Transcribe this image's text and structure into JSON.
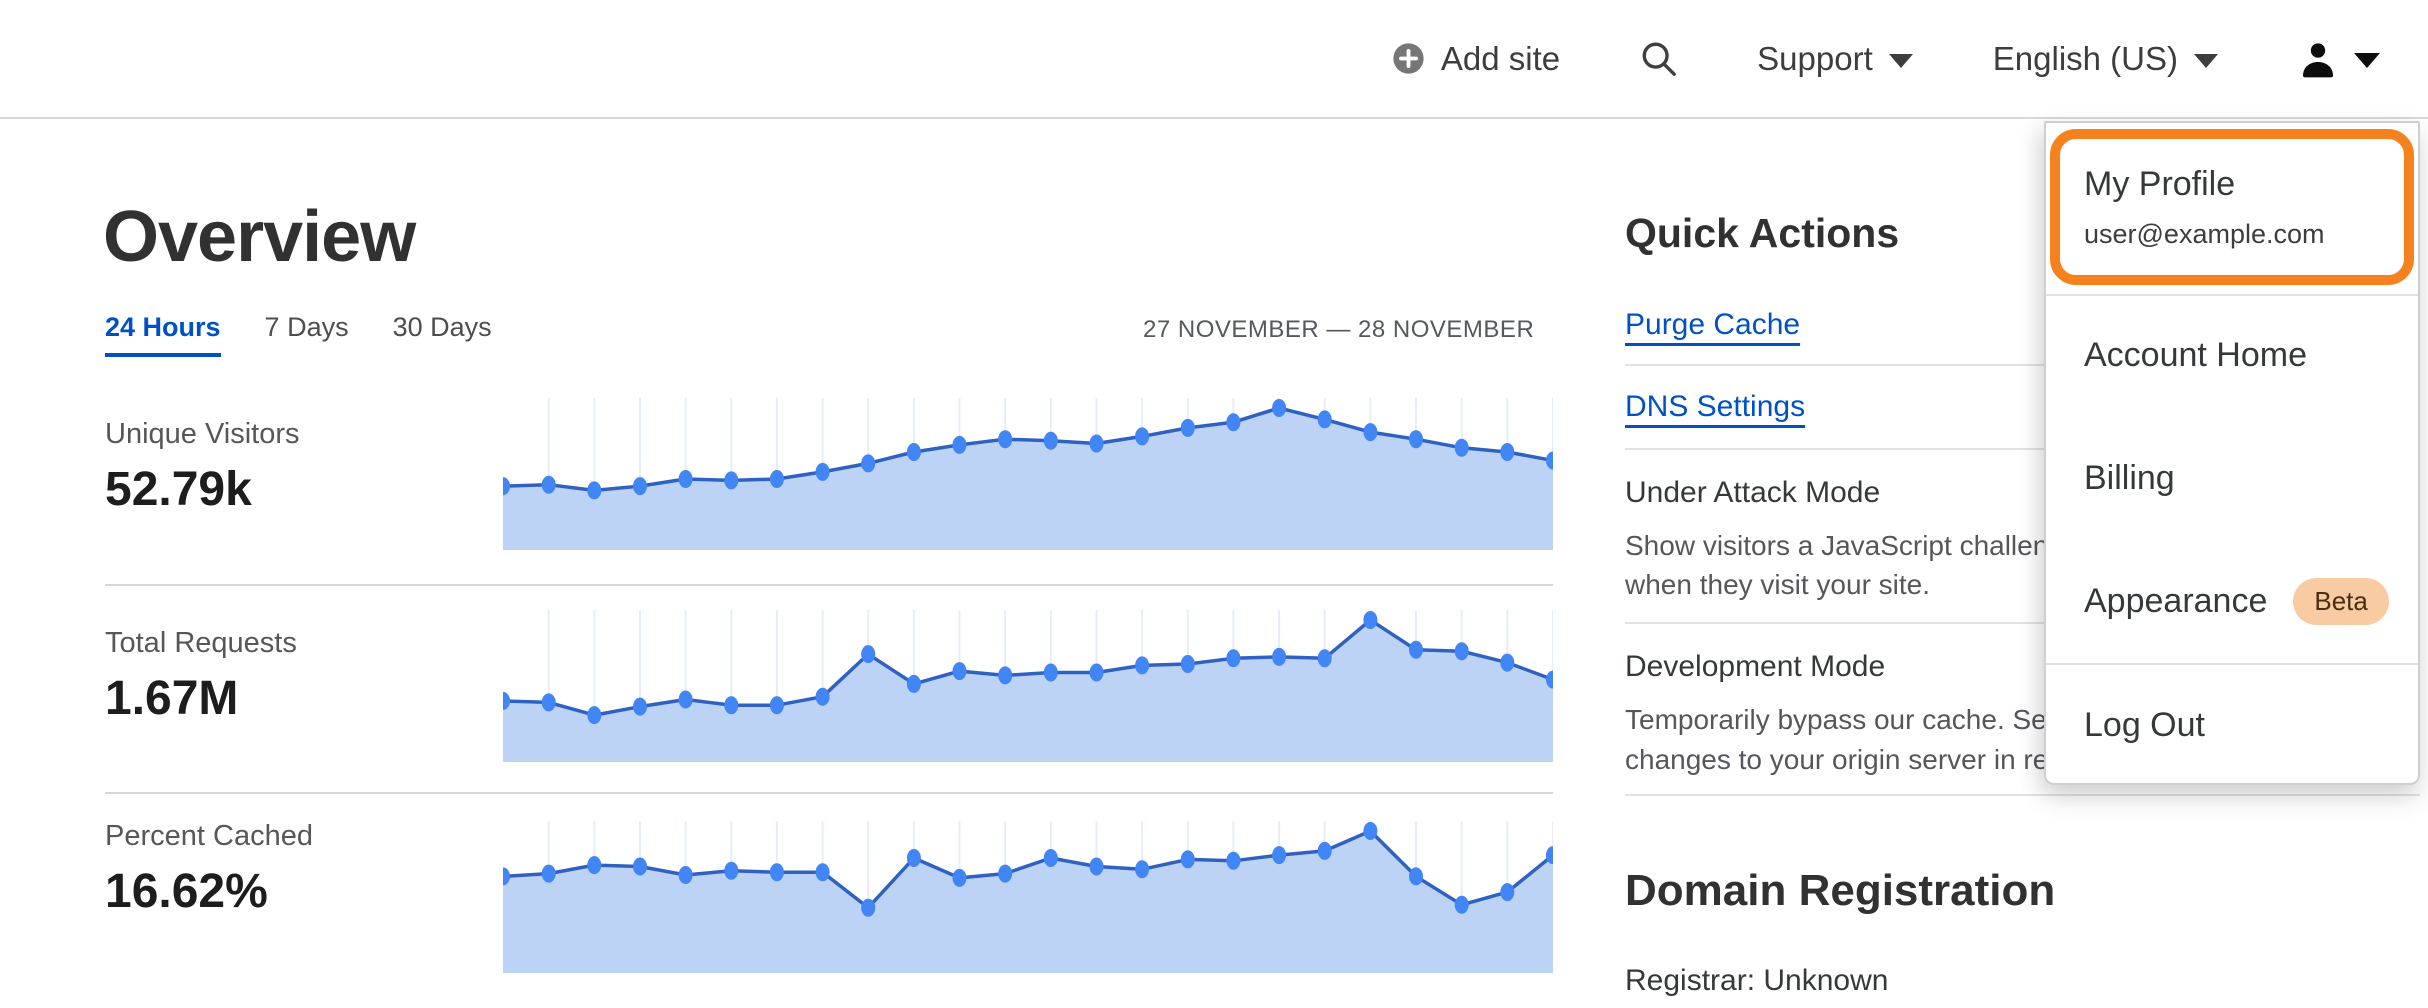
{
  "nav": {
    "add_site_label": "Add site",
    "support_label": "Support",
    "language_label": "English (US)"
  },
  "user_menu": {
    "profile_label": "My Profile",
    "profile_email": "user@example.com",
    "items": [
      {
        "label": "Account Home"
      },
      {
        "label": "Billing"
      },
      {
        "label": "Appearance",
        "badge": "Beta"
      },
      {
        "label": "Log Out"
      }
    ]
  },
  "overview": {
    "title": "Overview",
    "tabs": [
      {
        "label": "24 Hours",
        "active": true
      },
      {
        "label": "7 Days",
        "active": false
      },
      {
        "label": "30 Days",
        "active": false
      }
    ],
    "date_range": "27 NOVEMBER — 28 NOVEMBER",
    "metrics": [
      {
        "label": "Unique Visitors",
        "value": "52.79k"
      },
      {
        "label": "Total Requests",
        "value": "1.67M"
      },
      {
        "label": "Percent Cached",
        "value": "16.62%"
      }
    ]
  },
  "quick_actions": {
    "title": "Quick Actions",
    "links": [
      {
        "label": "Purge Cache"
      },
      {
        "label": "DNS Settings"
      }
    ],
    "sections": [
      {
        "label": "Under Attack Mode",
        "description_lines": [
          "Show visitors a JavaScript challenge",
          "when they visit your site."
        ]
      },
      {
        "label": "Development Mode",
        "description_lines": [
          "Temporarily bypass our cache. See",
          "changes to your origin server in realtime."
        ]
      }
    ]
  },
  "domain_registration": {
    "title": "Domain Registration",
    "registrar_line": "Registrar: Unknown"
  },
  "chart_data": [
    {
      "type": "area",
      "title": "Unique Visitors",
      "value_label": "52.79k",
      "x_description": "24 evenly spaced points over 27 Nov – 28 Nov (no axis tick labels shown)",
      "ylim": [
        0,
        1
      ],
      "grid": "vertical-only",
      "legend": false,
      "values_relative": [
        0.45,
        0.46,
        0.42,
        0.45,
        0.5,
        0.49,
        0.5,
        0.55,
        0.61,
        0.69,
        0.74,
        0.78,
        0.77,
        0.75,
        0.8,
        0.86,
        0.9,
        1.0,
        0.92,
        0.83,
        0.78,
        0.72,
        0.69,
        0.63
      ]
    },
    {
      "type": "area",
      "title": "Total Requests",
      "value_label": "1.67M",
      "x_description": "24 evenly spaced points over 27 Nov – 28 Nov (no axis tick labels shown)",
      "ylim": [
        0,
        1
      ],
      "grid": "vertical-only",
      "legend": false,
      "values_relative": [
        0.43,
        0.42,
        0.33,
        0.39,
        0.44,
        0.4,
        0.4,
        0.46,
        0.76,
        0.55,
        0.64,
        0.61,
        0.63,
        0.63,
        0.68,
        0.69,
        0.73,
        0.74,
        0.73,
        1.0,
        0.79,
        0.78,
        0.7,
        0.58
      ]
    },
    {
      "type": "area",
      "title": "Percent Cached",
      "value_label": "16.62%",
      "x_description": "24 evenly spaced points over 27 Nov – 28 Nov (no axis tick labels shown)",
      "ylim": [
        0,
        1
      ],
      "grid": "vertical-only",
      "legend": false,
      "values_relative": [
        0.68,
        0.7,
        0.76,
        0.75,
        0.69,
        0.72,
        0.71,
        0.71,
        0.46,
        0.81,
        0.67,
        0.7,
        0.81,
        0.75,
        0.73,
        0.8,
        0.79,
        0.83,
        0.86,
        1.0,
        0.68,
        0.48,
        0.57,
        0.83
      ]
    }
  ],
  "colors": {
    "link_blue": "#0051c3",
    "highlight_orange": "#f6821f",
    "beta_badge_bg": "#f9cba3",
    "beta_badge_text": "#4a2d12",
    "chart_fill": "#bdd3f6",
    "chart_line": "#2f62c0",
    "chart_dot": "#4285f4",
    "chart_grid": "#e7edf8",
    "heading_text": "#313131",
    "muted_text": "#56565c",
    "divider": "#d7d7d7"
  }
}
